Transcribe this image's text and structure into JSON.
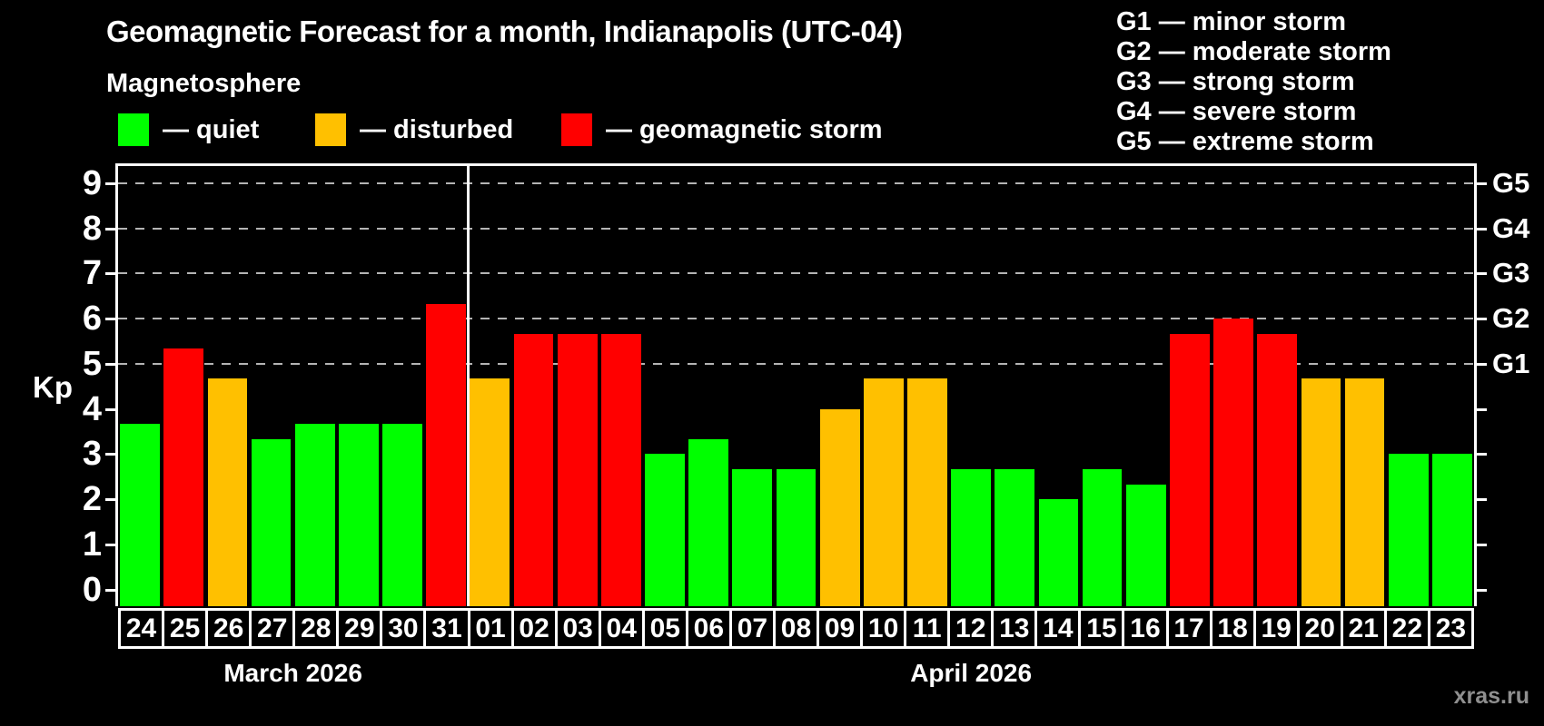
{
  "chart_data": {
    "type": "bar",
    "title": "Geomagnetic Forecast for a month, Indianapolis (UTC-04)",
    "subtitle": "Magnetosphere",
    "ylabel": "Kp",
    "xlabel": "",
    "ylim": [
      0,
      9
    ],
    "yticks": [
      0,
      1,
      2,
      3,
      4,
      5,
      6,
      7,
      8,
      9
    ],
    "gridlines_at": [
      5,
      6,
      7,
      8,
      9
    ],
    "legend_position": "top-left",
    "legend": [
      {
        "key": "quiet",
        "label": "— quiet",
        "color": "#00ff00"
      },
      {
        "key": "disturbed",
        "label": "— disturbed",
        "color": "#ffc000"
      },
      {
        "key": "storm",
        "label": "— geomagnetic storm",
        "color": "#ff0000"
      }
    ],
    "g_legend": [
      "G1 — minor storm",
      "G2 — moderate storm",
      "G3 — strong storm",
      "G4 — severe storm",
      "G5 — extreme storm"
    ],
    "right_axis": [
      {
        "kp": 5,
        "label": "G1"
      },
      {
        "kp": 6,
        "label": "G2"
      },
      {
        "kp": 7,
        "label": "G3"
      },
      {
        "kp": 8,
        "label": "G4"
      },
      {
        "kp": 9,
        "label": "G5"
      }
    ],
    "months": [
      {
        "label": "March 2026",
        "days": 8
      },
      {
        "label": "April 2026",
        "days": 23
      }
    ],
    "categories": [
      "24",
      "25",
      "26",
      "27",
      "28",
      "29",
      "30",
      "31",
      "01",
      "02",
      "03",
      "04",
      "05",
      "06",
      "07",
      "08",
      "09",
      "10",
      "11",
      "12",
      "13",
      "14",
      "15",
      "16",
      "17",
      "18",
      "19",
      "20",
      "21",
      "22",
      "23"
    ],
    "values": [
      3.67,
      5.33,
      4.67,
      3.33,
      3.67,
      3.67,
      3.67,
      6.33,
      4.67,
      5.67,
      5.67,
      5.67,
      3.0,
      3.33,
      2.67,
      2.67,
      4.0,
      4.67,
      4.67,
      2.67,
      2.67,
      2.0,
      2.67,
      2.33,
      5.67,
      6.0,
      5.67,
      4.67,
      4.67,
      3.0,
      3.0
    ],
    "statuses": [
      "quiet",
      "storm",
      "disturbed",
      "quiet",
      "quiet",
      "quiet",
      "quiet",
      "storm",
      "disturbed",
      "storm",
      "storm",
      "storm",
      "quiet",
      "quiet",
      "quiet",
      "quiet",
      "disturbed",
      "disturbed",
      "disturbed",
      "quiet",
      "quiet",
      "quiet",
      "quiet",
      "quiet",
      "storm",
      "storm",
      "storm",
      "disturbed",
      "disturbed",
      "quiet",
      "quiet"
    ],
    "colors": {
      "quiet": "#00ff00",
      "disturbed": "#ffc000",
      "storm": "#ff0000"
    },
    "watermark": "xras.ru"
  }
}
